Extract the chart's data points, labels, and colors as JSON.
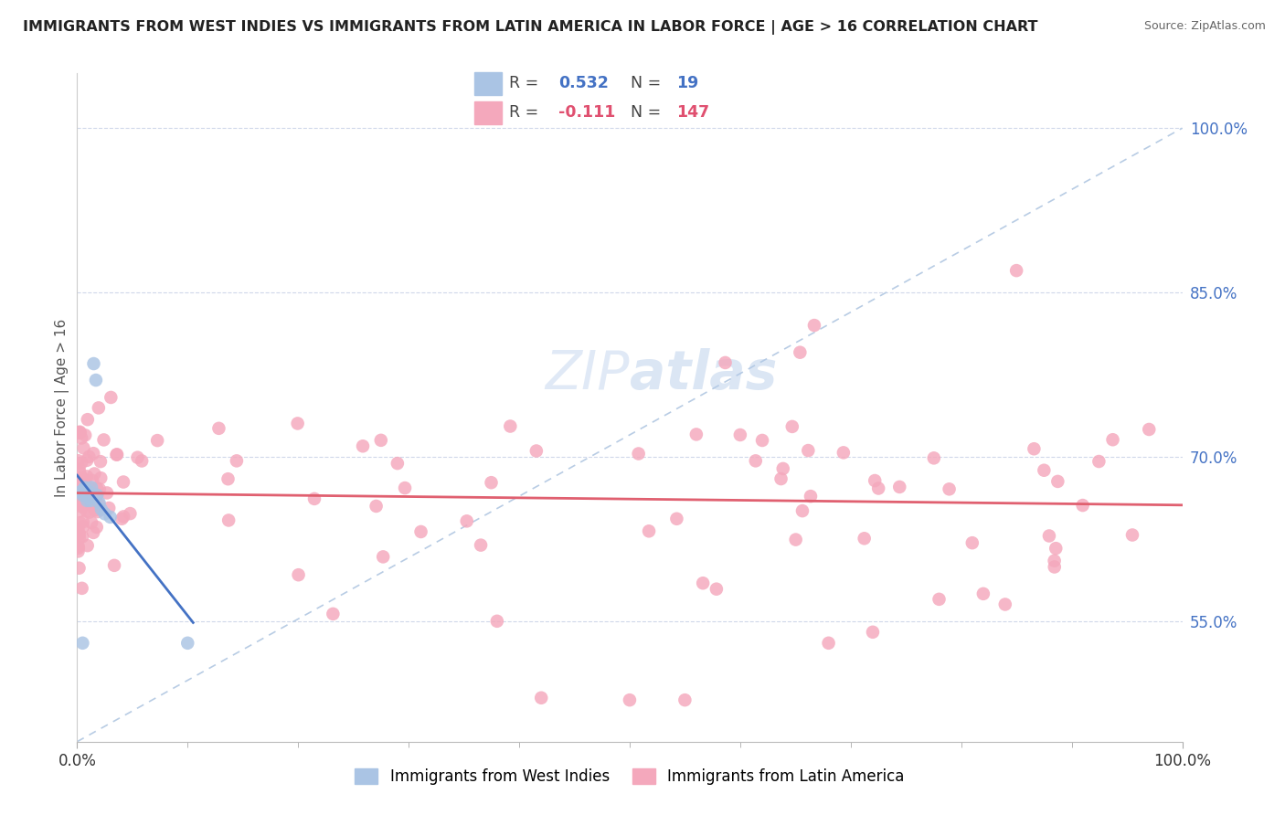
{
  "title": "IMMIGRANTS FROM WEST INDIES VS IMMIGRANTS FROM LATIN AMERICA IN LABOR FORCE | AGE > 16 CORRELATION CHART",
  "source": "Source: ZipAtlas.com",
  "ylabel": "In Labor Force | Age > 16",
  "legend_label1": "Immigrants from West Indies",
  "legend_label2": "Immigrants from Latin America",
  "r1": 0.532,
  "n1": 19,
  "r2": -0.111,
  "n2": 147,
  "color_blue": "#aac4e4",
  "color_pink": "#f4a8bc",
  "line_color_blue": "#4472c4",
  "line_color_pink": "#e06070",
  "diagonal_color": "#b8cce4",
  "background_color": "#ffffff",
  "grid_color": "#d0d8ea",
  "xlim": [
    0.0,
    1.0
  ],
  "ylim": [
    0.44,
    1.05
  ],
  "yticks": [
    0.55,
    0.7,
    0.85,
    1.0
  ],
  "ytick_labels": [
    "55.0%",
    "70.0%",
    "85.0%",
    "100.0%"
  ],
  "xtick_labels": [
    "0.0%",
    "100.0%"
  ],
  "r1_color": "#4472c4",
  "r2_color": "#e05070",
  "n1_color": "#4472c4",
  "n2_color": "#e05070"
}
